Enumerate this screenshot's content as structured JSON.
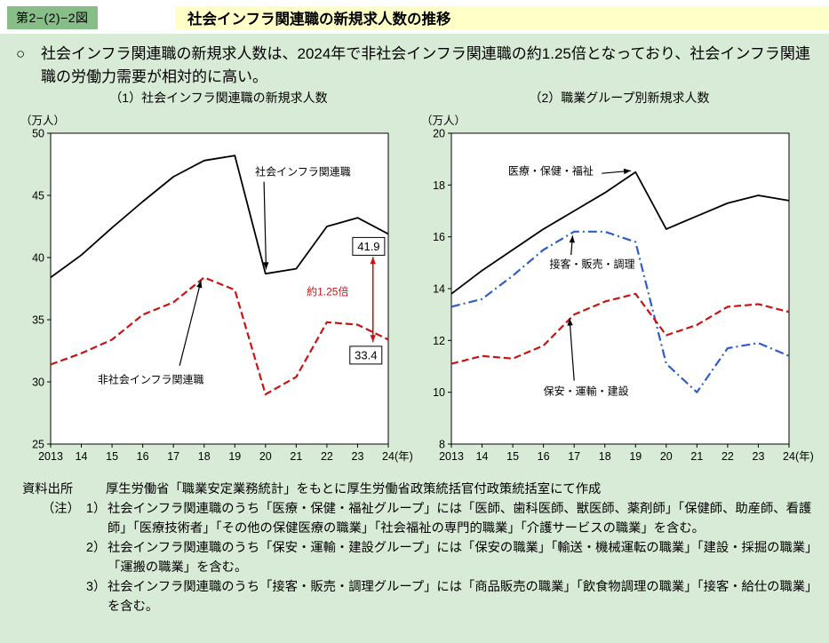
{
  "header": {
    "badge": "第2−(2)−2図",
    "title": "社会インフラ関連職の新規求人数の推移"
  },
  "intro": {
    "marker": "○",
    "text": "社会インフラ関連職の新規求人数は、2024年で非社会インフラ関連職の約1.25倍となっており、社会インフラ関連職の労働力需要が相対的に高い。"
  },
  "chart_data": [
    {
      "type": "line",
      "title": "（1）社会インフラ関連職の新規求人数",
      "unit_label": "（万人）",
      "x_suffix": "(年)",
      "x_start": 2013,
      "categories": [
        "2013",
        "14",
        "15",
        "16",
        "17",
        "18",
        "19",
        "20",
        "21",
        "22",
        "23",
        "24"
      ],
      "ylim": [
        25,
        50
      ],
      "yticks": [
        25,
        30,
        35,
        40,
        45,
        50
      ],
      "grid": false,
      "series": [
        {
          "name": "社会インフラ関連職",
          "color": "#000000",
          "dash": "solid",
          "width": 1.8,
          "values": [
            38.4,
            40.2,
            42.4,
            44.5,
            46.5,
            47.8,
            48.2,
            38.7,
            39.1,
            42.5,
            43.2,
            41.9
          ]
        },
        {
          "name": "非社会インフラ関連職",
          "color": "#c81414",
          "dash": "dashed",
          "width": 2.2,
          "values": [
            31.4,
            32.3,
            33.4,
            35.4,
            36.4,
            38.4,
            37.4,
            29.0,
            30.4,
            34.8,
            34.6,
            33.4
          ]
        }
      ],
      "annotations": [
        {
          "type": "label",
          "text": "社会インフラ関連職",
          "x": 2019.66,
          "y": 46.6,
          "anchor": "start",
          "color": "#000000",
          "arrow": {
            "x1": 2019.95,
            "y1": 46.1,
            "x2": 2020.02,
            "y2": 39.05
          }
        },
        {
          "type": "label",
          "text": "非社会インフラ関連職",
          "x": 2014.53,
          "y": 29.9,
          "anchor": "start",
          "color": "#000000",
          "arrow": {
            "x1": 2017.2,
            "y1": 31.3,
            "x2": 2017.9,
            "y2": 38.15
          }
        },
        {
          "type": "boxed",
          "text": "41.9",
          "x": 2023.36,
          "y": 40.9
        },
        {
          "type": "boxed",
          "text": "33.4",
          "x": 2023.27,
          "y": 32.15
        },
        {
          "type": "label",
          "text": "約1.25倍",
          "x": 2021.34,
          "y": 36.95,
          "anchor": "start",
          "color": "#c81414"
        },
        {
          "type": "vdarrow",
          "x": 2023.5,
          "y1": 40.05,
          "y2": 33.2,
          "color": "#c81414"
        }
      ]
    },
    {
      "type": "line",
      "title": "（2）職業グループ別新規求人数",
      "unit_label": "（万人）",
      "x_suffix": "(年)",
      "x_start": 2013,
      "categories": [
        "2013",
        "14",
        "15",
        "16",
        "17",
        "18",
        "19",
        "20",
        "21",
        "22",
        "23",
        "24"
      ],
      "ylim": [
        8,
        20
      ],
      "yticks": [
        8,
        10,
        12,
        14,
        16,
        18,
        20
      ],
      "grid": false,
      "series": [
        {
          "name": "医療・保健・福祉",
          "color": "#000000",
          "dash": "solid",
          "width": 1.8,
          "values": [
            13.8,
            14.7,
            15.5,
            16.3,
            17.0,
            17.7,
            18.5,
            16.3,
            16.8,
            17.3,
            17.6,
            17.4
          ]
        },
        {
          "name": "接客・販売・調理",
          "color": "#2e5fc4",
          "dash": "dashdot",
          "width": 2.2,
          "values": [
            13.3,
            13.6,
            14.5,
            15.5,
            16.2,
            16.2,
            15.8,
            11.1,
            10.0,
            11.7,
            11.9,
            11.4
          ]
        },
        {
          "name": "保安・運輸・建設",
          "color": "#c81414",
          "dash": "dashed",
          "width": 2.2,
          "values": [
            11.1,
            11.4,
            11.3,
            11.8,
            13.0,
            13.5,
            13.8,
            12.2,
            12.6,
            13.3,
            13.4,
            13.1
          ]
        }
      ],
      "annotations": [
        {
          "type": "label",
          "text": "医療・保健・福祉",
          "x": 2014.85,
          "y": 18.4,
          "anchor": "start",
          "color": "#000000",
          "arrow": {
            "x1": 2017.9,
            "y1": 18.45,
            "x2": 2018.85,
            "y2": 18.55
          }
        },
        {
          "type": "label",
          "text": "接客・販売・調理",
          "x": 2016.2,
          "y": 14.8,
          "anchor": "start",
          "color": "#000000",
          "arrow": {
            "x1": 2016.9,
            "y1": 15.3,
            "x2": 2016.95,
            "y2": 16.05
          }
        },
        {
          "type": "label",
          "text": "保安・運輸・建設",
          "x": 2016.0,
          "y": 9.9,
          "anchor": "start",
          "color": "#000000",
          "arrow": {
            "x1": 2017.0,
            "y1": 10.45,
            "x2": 2016.85,
            "y2": 12.85
          }
        }
      ]
    }
  ],
  "notes": {
    "source_label": "資料出所",
    "source_text": "厚生労働省「職業安定業務統計」をもとに厚生労働省政策統括官付政策統括室にて作成",
    "note_label": "（注）",
    "items": [
      {
        "num": "1）",
        "text": "社会インフラ関連職のうち「医療・保健・福祉グループ」には「医師、歯科医師、獣医師、薬剤師」「保健師、助産師、看護師」「医療技術者」「その他の保健医療の職業」「社会福祉の専門的職業」「介護サービスの職業」を含む。"
      },
      {
        "num": "2）",
        "text": "社会インフラ関連職のうち「保安・運輸・建設グループ」には「保安の職業」「輸送・機械運転の職業」「建設・採掘の職業」「運搬の職業」を含む。"
      },
      {
        "num": "3）",
        "text": "社会インフラ関連職のうち「接客・販売・調理グループ」には「商品販売の職業」「飲食物調理の職業」「接客・給仕の職業」を含む。"
      }
    ]
  },
  "colors": {
    "body_bg": "#d8ebd6",
    "badge_bg": "#87bd87",
    "title_bg": "#ffffc8",
    "red": "#c81414",
    "blue": "#2e5fc4",
    "black": "#000000"
  }
}
